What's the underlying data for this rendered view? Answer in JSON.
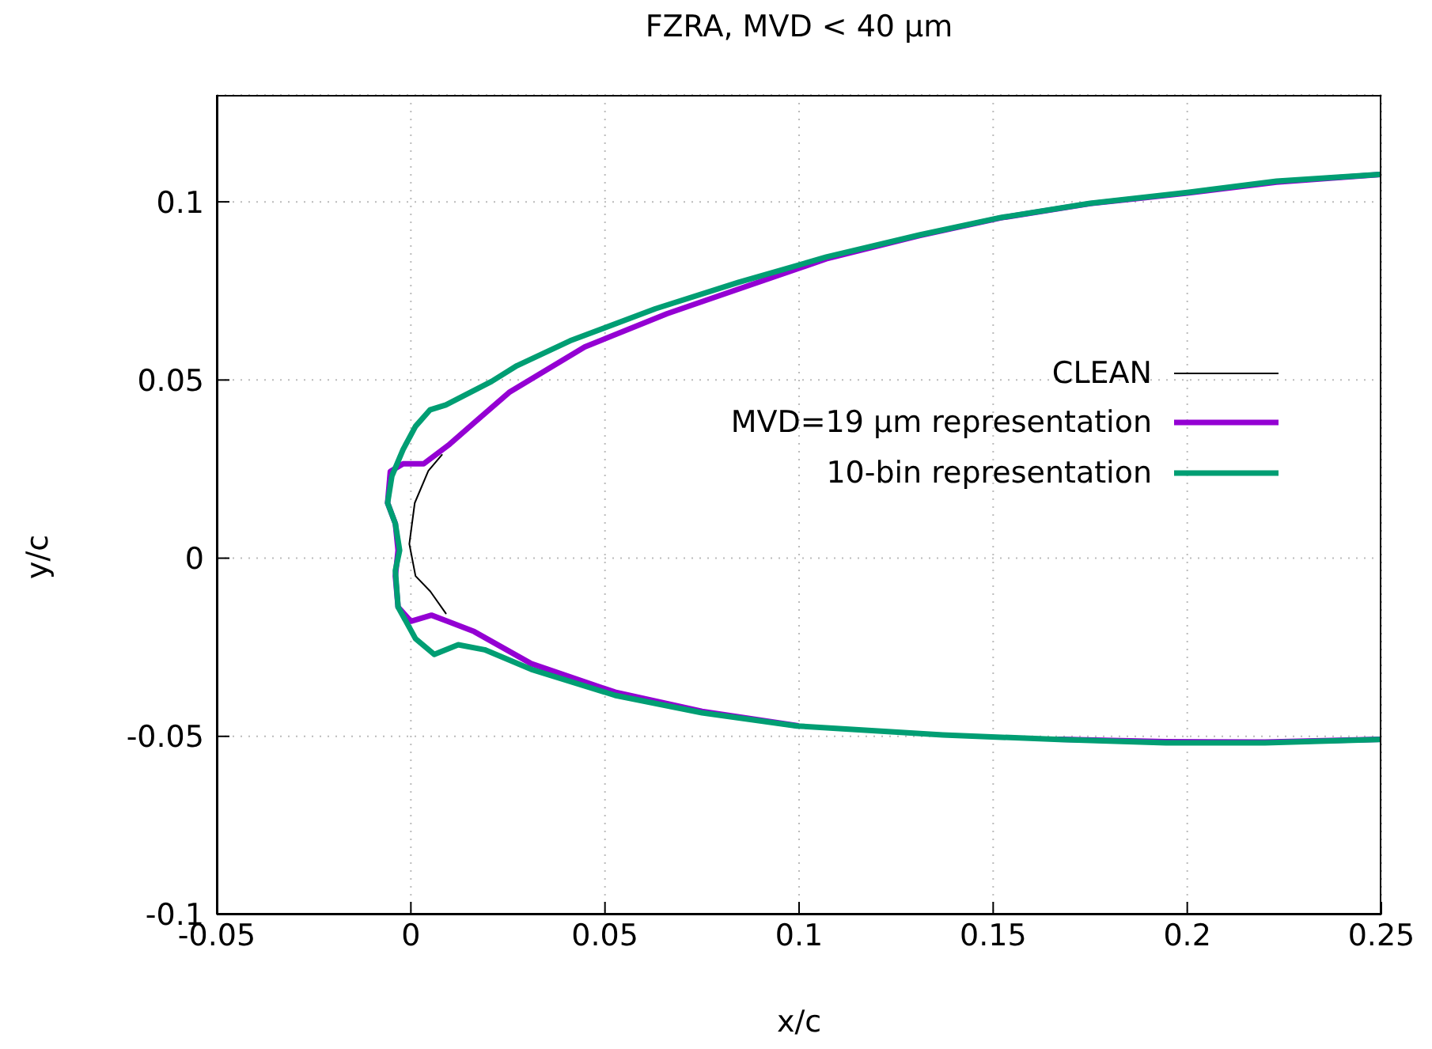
{
  "chart_data": {
    "type": "line",
    "title": "FZRA, MVD < 40 µm",
    "xlabel": "x/c",
    "ylabel": "y/c",
    "xlim": [
      -0.05,
      0.25
    ],
    "xticks": [
      -0.05,
      0,
      0.05,
      0.1,
      0.15,
      0.2,
      0.25
    ],
    "ylim": [
      -0.1,
      0.13
    ],
    "yticks": [
      -0.1,
      -0.05,
      0,
      0.05,
      0.1
    ],
    "grid": true,
    "legend": "right",
    "series": [
      {
        "name": "CLEAN",
        "color": "#000000",
        "x": [
          0.008,
          0.0045,
          0.001,
          -0.0004,
          0.0012,
          0.005,
          0.009
        ],
        "values": [
          0.029,
          0.0245,
          0.0155,
          0.004,
          -0.005,
          -0.0093,
          -0.0155
        ]
      },
      {
        "name": "MVD=19 µm representation",
        "color": "#9400d3",
        "x": [
          0.25,
          0.223,
          0.2005,
          0.175,
          0.152,
          0.131,
          0.107,
          0.087,
          0.066,
          0.0448,
          0.0253,
          0.0163,
          0.01,
          0.0033,
          -0.002,
          -0.0053,
          -0.006,
          -0.004,
          -0.0033,
          -0.004,
          -0.0033,
          0,
          0.0053,
          0.0094,
          0.0163,
          0.031,
          0.0526,
          0.075,
          0.0995,
          0.137,
          0.167,
          0.1945,
          0.22,
          0.25
        ],
        "values": [
          0.1077,
          0.1055,
          0.1025,
          0.0995,
          0.0955,
          0.0905,
          0.084,
          0.0765,
          0.0686,
          0.0593,
          0.0465,
          0.038,
          0.032,
          0.0265,
          0.0265,
          0.0243,
          0.0155,
          0.0097,
          0.0022,
          -0.005,
          -0.0137,
          -0.0177,
          -0.016,
          -0.0177,
          -0.0206,
          -0.0296,
          -0.0376,
          -0.043,
          -0.047,
          null,
          -0.0508,
          -0.0515,
          -0.0516,
          -0.0508
        ]
      },
      {
        "name": "10-bin representation",
        "color": "#009e73",
        "x": [
          0.2495,
          0.223,
          0.2005,
          0.175,
          0.152,
          0.131,
          0.107,
          0.0844,
          0.063,
          0.041,
          0.0273,
          0.0208,
          0.009,
          0.0049,
          0.0012,
          -0.002,
          -0.0049,
          -0.006,
          -0.004,
          -0.0029,
          -0.004,
          -0.0033,
          0.0012,
          0.006,
          0.0122,
          0.019,
          0.031,
          0.0526,
          0.075,
          0.0995,
          0.137,
          0.167,
          0.1945,
          0.22,
          0.2495
        ],
        "values": [
          0.1077,
          0.1058,
          0.1027,
          0.0996,
          0.0956,
          0.0907,
          0.0845,
          0.0774,
          0.07,
          0.061,
          0.054,
          0.0496,
          0.043,
          0.0416,
          0.037,
          0.0305,
          0.023,
          0.0155,
          0.0097,
          0.0022,
          -0.0035,
          -0.0137,
          -0.0226,
          -0.027,
          -0.0243,
          -0.0257,
          -0.0312,
          -0.0385,
          -0.0434,
          -0.0471,
          -0.0496,
          -0.0509,
          -0.0518,
          -0.0518,
          -0.0509
        ]
      }
    ]
  }
}
